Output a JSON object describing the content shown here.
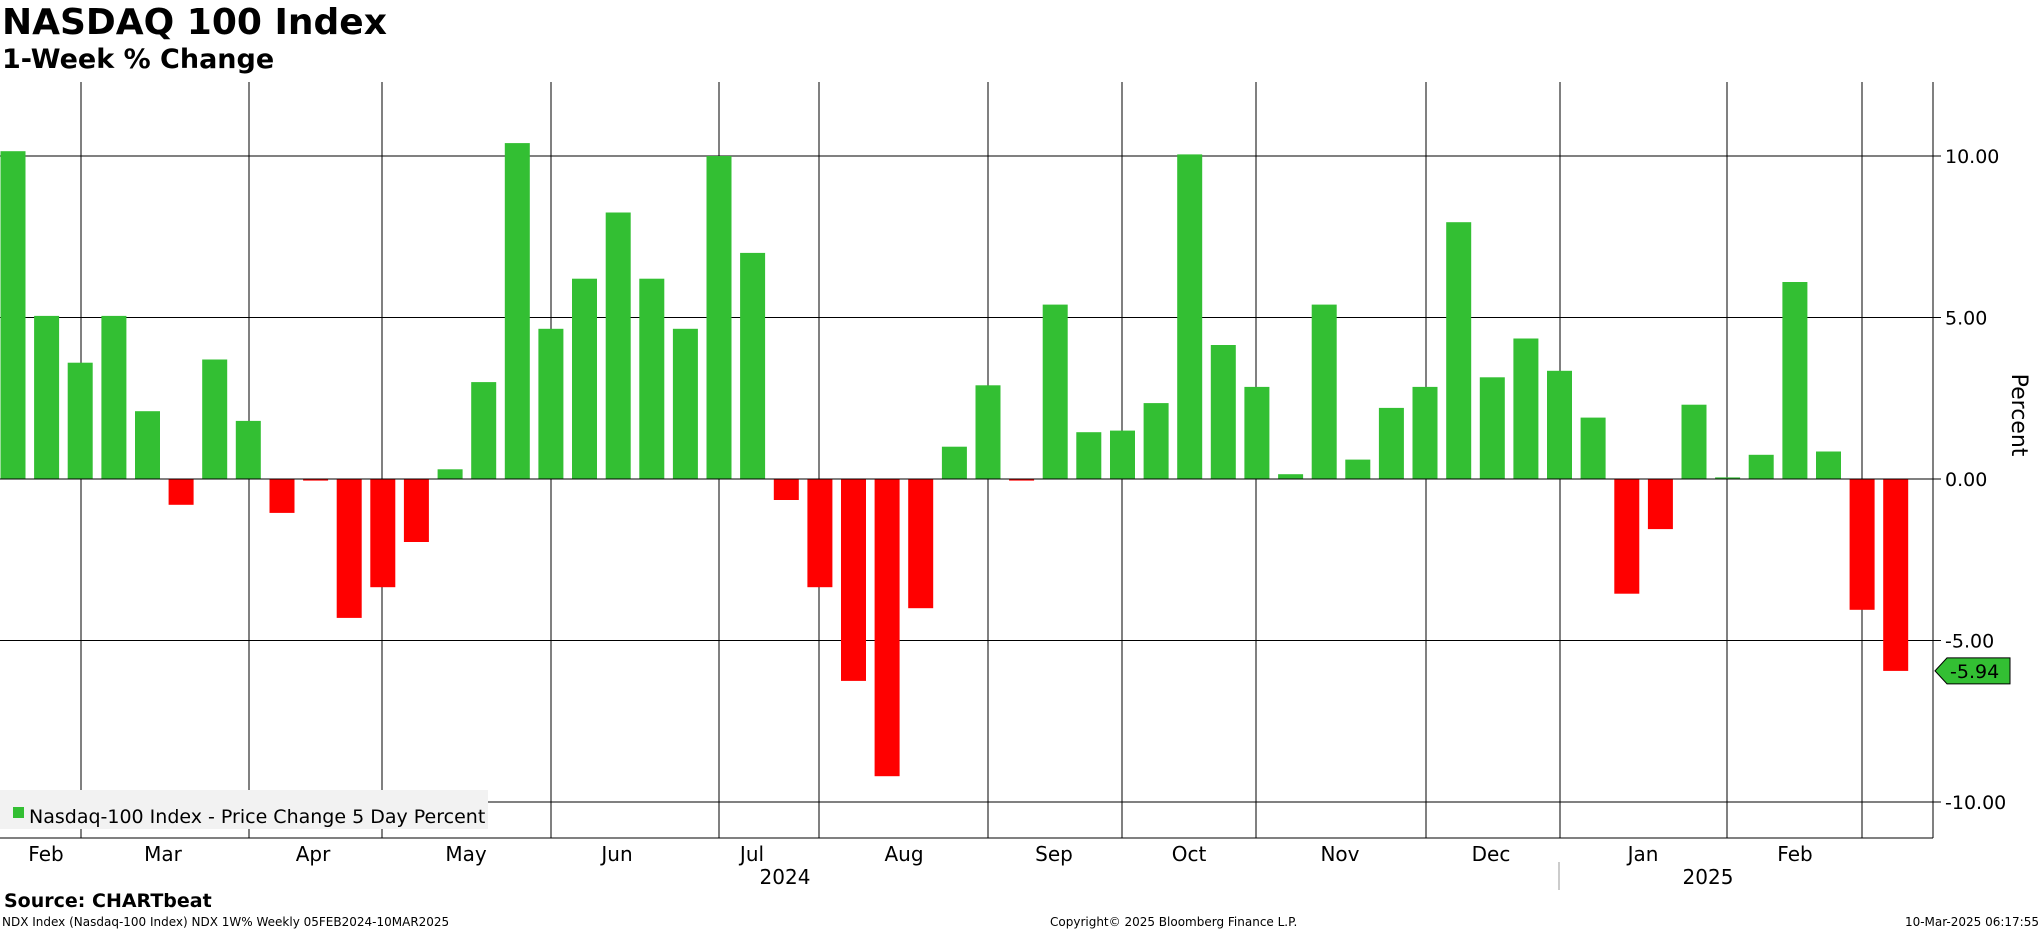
{
  "header": {
    "title": "NASDAQ 100 Index",
    "subtitle": "1-Week % Change"
  },
  "footer": {
    "source": "Source: CHARTbeat",
    "info": "NDX Index (Nasdaq-100 Index) NDX 1W% Weekly 05FEB2024-10MAR2025",
    "copyright": "Copyright© 2025 Bloomberg Finance L.P.",
    "timestamp": "10-Mar-2025 06:17:55"
  },
  "colors": {
    "positive": "#33bf33",
    "negative": "#ff0000",
    "grid": "#000000",
    "last_value_box": "#33bf33"
  },
  "chart_data": {
    "type": "bar",
    "title": "NASDAQ 100 Index",
    "subtitle": "1-Week % Change",
    "ylabel": "Percent",
    "ylim": [
      -11.0,
      12.2
    ],
    "y_ticks": [
      10,
      5,
      0,
      -5,
      -10
    ],
    "y_tick_labels": [
      "10.00",
      "5.00",
      "0.00",
      "-5.00",
      "-10.00"
    ],
    "legend": {
      "label": "Nasdaq-100 Index - Price Change 5 Day Percent",
      "placement": "bottom-left"
    },
    "last_value_label": "-5.94",
    "grid": true,
    "month_labels": [
      "Feb",
      "Mar",
      "Apr",
      "May",
      "Jun",
      "Jul",
      "Aug",
      "Sep",
      "Oct",
      "Nov",
      "Dec",
      "Jan",
      "Feb"
    ],
    "year_labels": [
      "2024",
      "2025"
    ],
    "values": [
      10.15,
      5.05,
      3.6,
      5.05,
      2.1,
      -0.8,
      3.7,
      1.8,
      -1.05,
      -0.05,
      -4.3,
      -3.35,
      -1.95,
      0.3,
      3.0,
      10.4,
      4.65,
      6.2,
      8.25,
      6.2,
      4.65,
      10.0,
      7.0,
      -0.65,
      -3.35,
      -6.25,
      -9.2,
      -4.0,
      1.0,
      2.9,
      -0.05,
      5.4,
      1.45,
      1.5,
      2.35,
      10.05,
      4.15,
      2.85,
      0.15,
      5.4,
      0.6,
      2.2,
      2.85,
      7.95,
      3.15,
      4.35,
      3.35,
      1.9,
      -3.55,
      -1.55,
      2.3,
      0.05,
      0.75,
      6.1,
      0.85,
      -4.05,
      -5.94
    ]
  }
}
